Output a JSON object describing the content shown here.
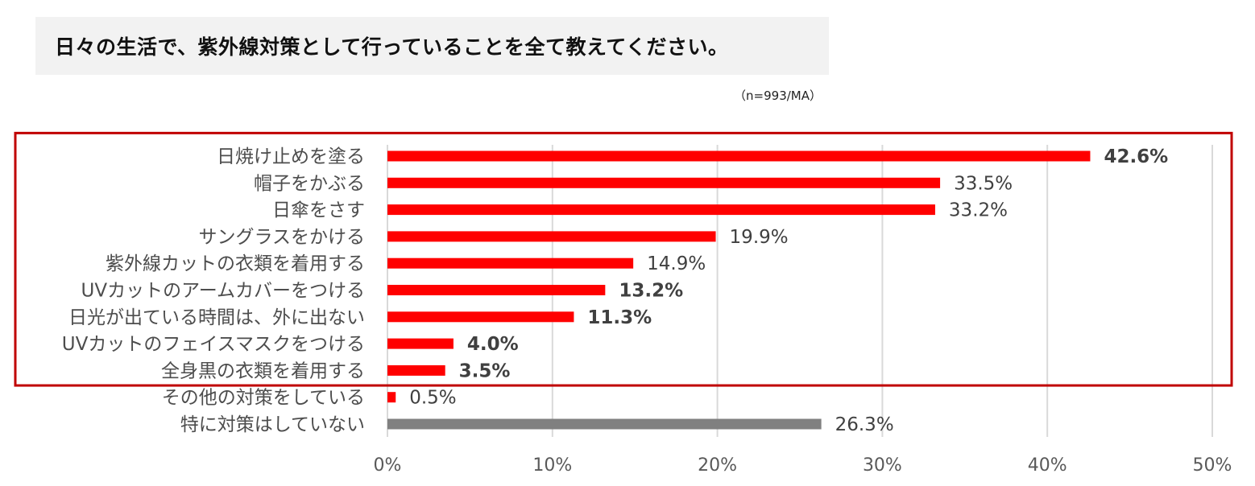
{
  "title": "日々の生活で、紫外線対策として行っていることを全て教えてください。",
  "sample_note": "（n=993/MA）",
  "chart_data": {
    "type": "bar",
    "orientation": "horizontal",
    "categories": [
      "日焼け止めを塗る",
      "帽子をかぶる",
      "日傘をさす",
      "サングラスをかける",
      "紫外線カットの衣類を着用する",
      "UVカットのアームカバーをつける",
      "日光が出ている時間は、外に出ない",
      "UVカットのフェイスマスクをつける",
      "全身黒の衣類を着用する",
      "その他の対策をしている",
      "特に対策はしていない"
    ],
    "values": [
      42.6,
      33.5,
      33.2,
      19.9,
      14.9,
      13.2,
      11.3,
      4.0,
      3.5,
      0.5,
      26.3
    ],
    "value_labels": [
      "42.6%",
      "33.5%",
      "33.2%",
      "19.9%",
      "14.9%",
      "13.2%",
      "11.3%",
      "4.0%",
      "3.5%",
      "0.5%",
      "26.3%"
    ],
    "bold_labels": [
      true,
      false,
      false,
      false,
      false,
      true,
      true,
      true,
      true,
      false,
      false
    ],
    "bar_colors": [
      "#ff0000",
      "#ff0000",
      "#ff0000",
      "#ff0000",
      "#ff0000",
      "#ff0000",
      "#ff0000",
      "#ff0000",
      "#ff0000",
      "#ff0000",
      "#808080"
    ],
    "xlim": [
      0,
      50
    ],
    "x_ticks": [
      0,
      10,
      20,
      30,
      40,
      50
    ],
    "x_tick_labels": [
      "0%",
      "10%",
      "20%",
      "30%",
      "40%",
      "50%"
    ],
    "grid": true,
    "highlight_box_color": "#c00000",
    "highlight_categories": 9
  }
}
